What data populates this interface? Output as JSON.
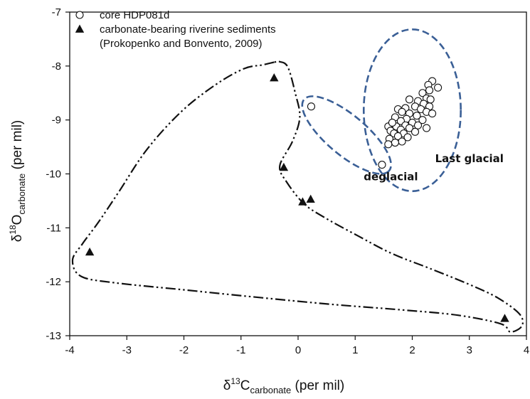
{
  "chart_data": {
    "type": "scatter",
    "xlabel": {
      "prefix": "δ",
      "sup": "13",
      "main": "C",
      "sub": "carbonate",
      "suffix": " (per mil)"
    },
    "ylabel": {
      "prefix": "δ",
      "sup": "18",
      "main": "O",
      "sub": "carbonate",
      "suffix": " (per mil)"
    },
    "xlim": [
      -4,
      4
    ],
    "ylim": [
      -13,
      -7
    ],
    "xticks": [
      -4,
      -3,
      -2,
      -1,
      0,
      1,
      2,
      3,
      4
    ],
    "yticks": [
      -7,
      -8,
      -9,
      -10,
      -11,
      -12,
      -13
    ],
    "legend": {
      "position": "top-left",
      "entries": [
        {
          "label": "core HDP081d",
          "marker": "open-circle"
        },
        {
          "label": "carbonate-bearing riverine sediments",
          "marker": "filled-triangle"
        },
        {
          "label": "(Prokopenko and Bonvento, 2009)",
          "marker": "none"
        }
      ]
    },
    "series": [
      {
        "name": "core HDP081d",
        "marker": "open-circle",
        "points": [
          [
            0.23,
            -8.75
          ],
          [
            1.47,
            -9.83
          ],
          [
            2.35,
            -8.28
          ],
          [
            2.28,
            -8.35
          ],
          [
            2.45,
            -8.4
          ],
          [
            2.3,
            -8.45
          ],
          [
            2.18,
            -8.5
          ],
          [
            2.25,
            -8.6
          ],
          [
            2.32,
            -8.62
          ],
          [
            1.95,
            -8.62
          ],
          [
            2.1,
            -8.65
          ],
          [
            2.2,
            -8.7
          ],
          [
            2.3,
            -8.75
          ],
          [
            2.05,
            -8.75
          ],
          [
            1.88,
            -8.78
          ],
          [
            2.15,
            -8.8
          ],
          [
            2.25,
            -8.85
          ],
          [
            1.75,
            -8.8
          ],
          [
            1.82,
            -8.85
          ],
          [
            1.95,
            -8.88
          ],
          [
            2.35,
            -8.88
          ],
          [
            2.08,
            -8.92
          ],
          [
            1.7,
            -8.95
          ],
          [
            1.9,
            -8.98
          ],
          [
            2.18,
            -9.0
          ],
          [
            1.8,
            -9.02
          ],
          [
            2.0,
            -9.05
          ],
          [
            1.65,
            -9.08
          ],
          [
            1.88,
            -9.1
          ],
          [
            2.1,
            -9.1
          ],
          [
            1.72,
            -9.12
          ],
          [
            1.58,
            -9.12
          ],
          [
            1.95,
            -9.15
          ],
          [
            2.25,
            -9.15
          ],
          [
            1.8,
            -9.18
          ],
          [
            1.62,
            -9.2
          ],
          [
            1.68,
            -9.25
          ],
          [
            1.85,
            -9.25
          ],
          [
            2.05,
            -9.22
          ],
          [
            1.75,
            -9.3
          ],
          [
            1.92,
            -9.32
          ],
          [
            1.6,
            -9.35
          ],
          [
            1.82,
            -9.4
          ],
          [
            1.7,
            -9.42
          ],
          [
            1.58,
            -9.45
          ],
          [
            1.65,
            -9.05
          ]
        ]
      },
      {
        "name": "carbonate-bearing riverine sediments",
        "marker": "filled-triangle",
        "points": [
          [
            -0.42,
            -8.22
          ],
          [
            -0.25,
            -9.88
          ],
          [
            0.08,
            -10.52
          ],
          [
            0.22,
            -10.47
          ],
          [
            -3.65,
            -11.45
          ],
          [
            3.62,
            -12.68
          ]
        ]
      }
    ],
    "envelopes": [
      {
        "style": "dash-dot-dot",
        "color": "#111111",
        "path": [
          [
            -0.42,
            -7.93
          ],
          [
            -0.62,
            -7.98
          ],
          [
            -0.95,
            -8.05
          ],
          [
            -1.45,
            -8.35
          ],
          [
            -2.05,
            -8.85
          ],
          [
            -2.65,
            -9.55
          ],
          [
            -3.15,
            -10.35
          ],
          [
            -3.5,
            -10.9
          ],
          [
            -3.78,
            -11.3
          ],
          [
            -3.95,
            -11.6
          ],
          [
            -3.8,
            -11.9
          ],
          [
            -3.2,
            -12.02
          ],
          [
            -2.0,
            -12.15
          ],
          [
            -0.6,
            -12.3
          ],
          [
            0.6,
            -12.42
          ],
          [
            1.8,
            -12.52
          ],
          [
            2.8,
            -12.62
          ],
          [
            3.55,
            -12.78
          ],
          [
            3.72,
            -12.93
          ],
          [
            3.92,
            -12.82
          ],
          [
            3.88,
            -12.6
          ],
          [
            3.5,
            -12.3
          ],
          [
            3.0,
            -12.05
          ],
          [
            2.3,
            -11.75
          ],
          [
            1.65,
            -11.48
          ],
          [
            1.05,
            -11.15
          ],
          [
            0.45,
            -10.8
          ],
          [
            0.1,
            -10.55
          ],
          [
            -0.2,
            -10.15
          ],
          [
            -0.32,
            -9.85
          ],
          [
            -0.1,
            -9.4
          ],
          [
            0.03,
            -8.95
          ],
          [
            -0.05,
            -8.5
          ],
          [
            -0.18,
            -8.02
          ],
          [
            -0.32,
            -7.92
          ]
        ]
      }
    ],
    "ellipses": [
      {
        "label": "deglacial",
        "color": "#3a5f96",
        "style": "dashed",
        "cx": 0.85,
        "cy": -9.28,
        "rx": 1.0,
        "ry": 0.28,
        "angle_data": -27,
        "label_at": [
          1.15,
          -10.12
        ]
      },
      {
        "label": "Last glacial",
        "color": "#3a5f96",
        "style": "dashed",
        "cx": 2.0,
        "cy": -8.82,
        "rx": 0.85,
        "ry": 1.5,
        "angle_data": 0,
        "label_at": [
          2.4,
          -9.78
        ]
      }
    ]
  }
}
